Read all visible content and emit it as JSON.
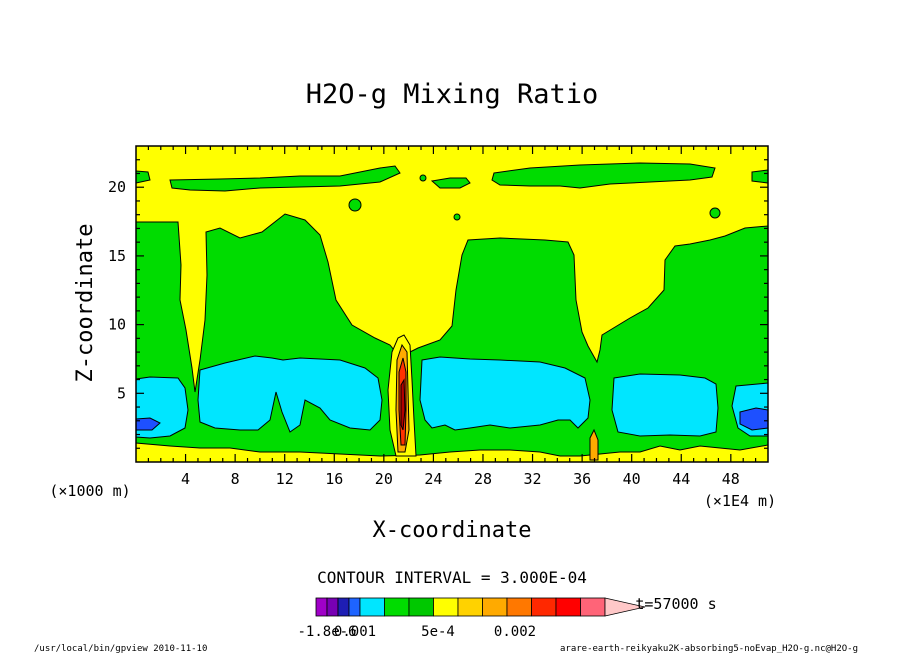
{
  "chart_data": {
    "type": "contour",
    "title": "H2O-g Mixing Ratio",
    "xlabel": "X-coordinate",
    "ylabel": "Z-coordinate",
    "x_unit_left": "(×1000 m)",
    "x_unit_right": "(×1E4 m)",
    "xlim": [
      0,
      51
    ],
    "ylim": [
      0,
      23
    ],
    "x_ticks": [
      "4",
      "8",
      "12",
      "16",
      "20",
      "24",
      "28",
      "32",
      "36",
      "40",
      "44",
      "48"
    ],
    "x_tick_values": [
      4,
      8,
      12,
      16,
      20,
      24,
      28,
      32,
      36,
      40,
      44,
      48
    ],
    "y_ticks": [
      "5",
      "10",
      "15",
      "20"
    ],
    "y_tick_values": [
      5,
      10,
      15,
      20
    ],
    "contour_interval_text": "CONTOUR INTERVAL = 3.000E-04",
    "time_text": "t=57000 s",
    "colorbar_labels": [
      "-1.8e-6",
      "0.001",
      "5e-4",
      "0.002"
    ],
    "colorbar_colors": [
      "#a000c8",
      "#7800b4",
      "#1e1eb4",
      "#1e64ff",
      "#00e6ff",
      "#00dc00",
      "#00c800",
      "#ffff00",
      "#ffd200",
      "#ffaa00",
      "#ff7800",
      "#ff2800",
      "#ff0000",
      "#ff6478",
      "#ffc8c8"
    ],
    "regions": {
      "background": "#ffff00",
      "green": "#00dc00",
      "cyan": "#00e6ff",
      "blue": "#1e50ff",
      "orange": "#ffaa00",
      "red": "#ff3200",
      "darkred": "#b40000"
    }
  },
  "footer": {
    "left": "/usr/local/bin/gpview  2010-11-10",
    "right": "arare-earth-reikyaku2K-absorbing5-noEvap_H2O-g.nc@H2O-g"
  }
}
